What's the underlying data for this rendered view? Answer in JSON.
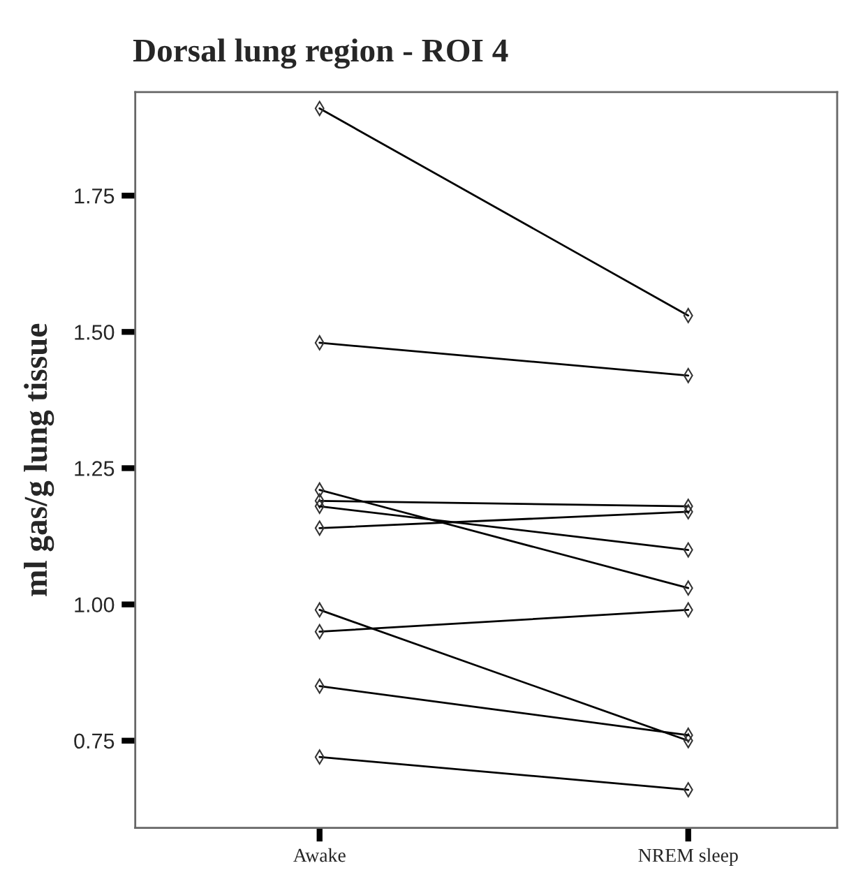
{
  "chart_data": {
    "type": "line",
    "title": "Dorsal lung region - ROI 4",
    "ylabel": "ml gas/g lung tissue",
    "categories": [
      "Awake",
      "NREM sleep"
    ],
    "series": [
      {
        "color": "#000000",
        "values": [
          1.91,
          1.53
        ]
      },
      {
        "color": "#000000",
        "values": [
          1.48,
          1.42
        ]
      },
      {
        "color": "#000000",
        "values": [
          1.21,
          1.03
        ]
      },
      {
        "color": "#000000",
        "values": [
          1.19,
          1.18
        ]
      },
      {
        "color": "#000000",
        "values": [
          1.18,
          1.1
        ]
      },
      {
        "color": "#000000",
        "values": [
          1.14,
          1.17
        ]
      },
      {
        "color": "#000000",
        "values": [
          0.99,
          0.75
        ]
      },
      {
        "color": "#000000",
        "values": [
          0.95,
          0.99
        ]
      },
      {
        "color": "#000000",
        "values": [
          0.85,
          0.76
        ]
      },
      {
        "color": "#000000",
        "values": [
          0.72,
          0.66
        ]
      }
    ],
    "ylim": [
      0.59,
      1.94
    ],
    "yticks": [
      0.75,
      {
        "value": 1.0,
        "label": "1.00"
      },
      1.25,
      {
        "value": 1.5,
        "label": "1.50"
      },
      1.75
    ],
    "marker": "diamond",
    "line_style": "solid",
    "grid": false,
    "legend": false
  }
}
